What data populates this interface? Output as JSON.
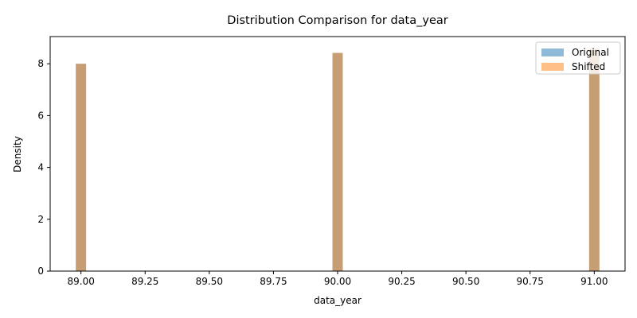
{
  "chart_data": {
    "type": "bar",
    "title": "Distribution Comparison for data_year",
    "xlabel": "data_year",
    "ylabel": "Density",
    "xlim": [
      88.88,
      91.12
    ],
    "ylim": [
      0,
      9.05
    ],
    "x_ticks": [
      "89.00",
      "89.25",
      "89.50",
      "89.75",
      "90.00",
      "90.25",
      "90.50",
      "90.75",
      "91.00"
    ],
    "y_ticks": [
      "0",
      "2",
      "4",
      "6",
      "8"
    ],
    "bin_width": 0.04,
    "grid": false,
    "legend_position": "top-right",
    "series": [
      {
        "name": "Original",
        "color": "#1f77b4",
        "opacity": 0.5,
        "bins": [
          {
            "x": 89.0,
            "density": 8.0
          },
          {
            "x": 90.0,
            "density": 8.42
          },
          {
            "x": 91.0,
            "density": 8.58
          }
        ]
      },
      {
        "name": "Shifted",
        "color": "#ff7f0e",
        "opacity": 0.5,
        "bins": [
          {
            "x": 89.0,
            "density": 8.0
          },
          {
            "x": 90.0,
            "density": 8.42
          },
          {
            "x": 91.0,
            "density": 8.58
          }
        ]
      }
    ]
  }
}
